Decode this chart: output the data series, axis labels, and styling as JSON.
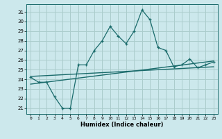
{
  "title": "",
  "xlabel": "Humidex (Indice chaleur)",
  "ylabel": "",
  "bg_color": "#cce8ec",
  "grid_color": "#aacccc",
  "line_color": "#1a6b6b",
  "x_ticks": [
    0,
    1,
    2,
    3,
    4,
    5,
    6,
    7,
    8,
    9,
    10,
    11,
    12,
    13,
    14,
    15,
    16,
    17,
    18,
    19,
    20,
    21,
    22,
    23
  ],
  "x_tick_labels": [
    "0",
    "1",
    "2",
    "3",
    "4",
    "5",
    "6",
    "7",
    "8",
    "9",
    "10",
    "11",
    "12",
    "13",
    "14",
    "15",
    "16",
    "17",
    "18",
    "19",
    "20",
    "21",
    "22",
    "23"
  ],
  "y_ticks": [
    21,
    22,
    23,
    24,
    25,
    26,
    27,
    28,
    29,
    30,
    31
  ],
  "ylim": [
    20.4,
    31.8
  ],
  "xlim": [
    -0.5,
    23.5
  ],
  "line1_x": [
    0,
    1,
    2,
    3,
    4,
    5,
    6,
    7,
    8,
    9,
    10,
    11,
    12,
    13,
    14,
    15,
    16,
    17,
    18,
    19,
    20,
    21,
    22,
    23
  ],
  "line1_y": [
    24.2,
    23.7,
    23.7,
    22.2,
    21.0,
    21.0,
    25.5,
    25.5,
    27.0,
    28.0,
    29.5,
    28.5,
    27.7,
    29.0,
    31.2,
    30.2,
    27.3,
    27.0,
    25.3,
    25.5,
    26.1,
    25.2,
    25.5,
    25.8
  ],
  "line2_x": [
    0,
    23
  ],
  "line2_y": [
    23.5,
    25.9
  ],
  "line3_x": [
    0,
    23
  ],
  "line3_y": [
    24.3,
    25.3
  ]
}
